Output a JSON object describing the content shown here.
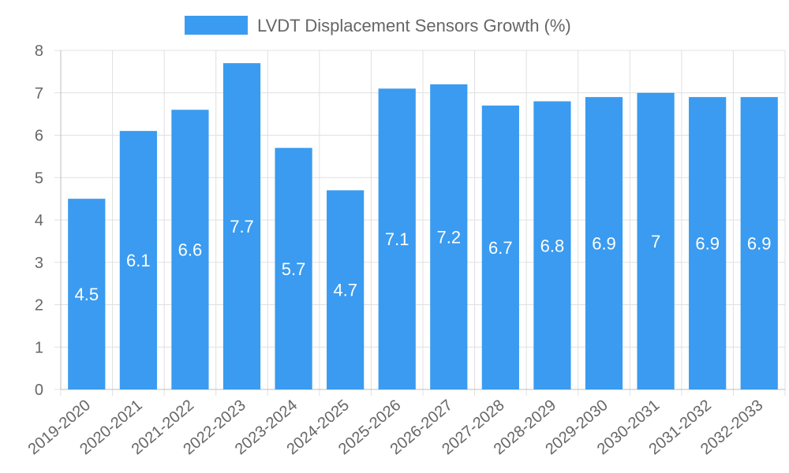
{
  "chart_data": {
    "type": "bar",
    "title": "",
    "xlabel": "",
    "ylabel": "",
    "categories": [
      "2019-2020",
      "2020-2021",
      "2021-2022",
      "2022-2023",
      "2023-2024",
      "2024-2025",
      "2025-2026",
      "2026-2027",
      "2027-2028",
      "2028-2029",
      "2029-2030",
      "2030-2031",
      "2031-2032",
      "2032-2033"
    ],
    "series": [
      {
        "name": "LVDT Displacement Sensors Growth (%)",
        "values": [
          4.5,
          6.1,
          6.6,
          7.7,
          5.7,
          4.7,
          7.1,
          7.2,
          6.7,
          6.8,
          6.9,
          7,
          6.9,
          6.9
        ],
        "color": "#3a9bf0"
      }
    ],
    "ylim": [
      0,
      8
    ],
    "yticks": [
      0,
      1,
      2,
      3,
      4,
      5,
      6,
      7,
      8
    ],
    "grid": true,
    "legend_position": "top-center",
    "data_labels": true
  }
}
